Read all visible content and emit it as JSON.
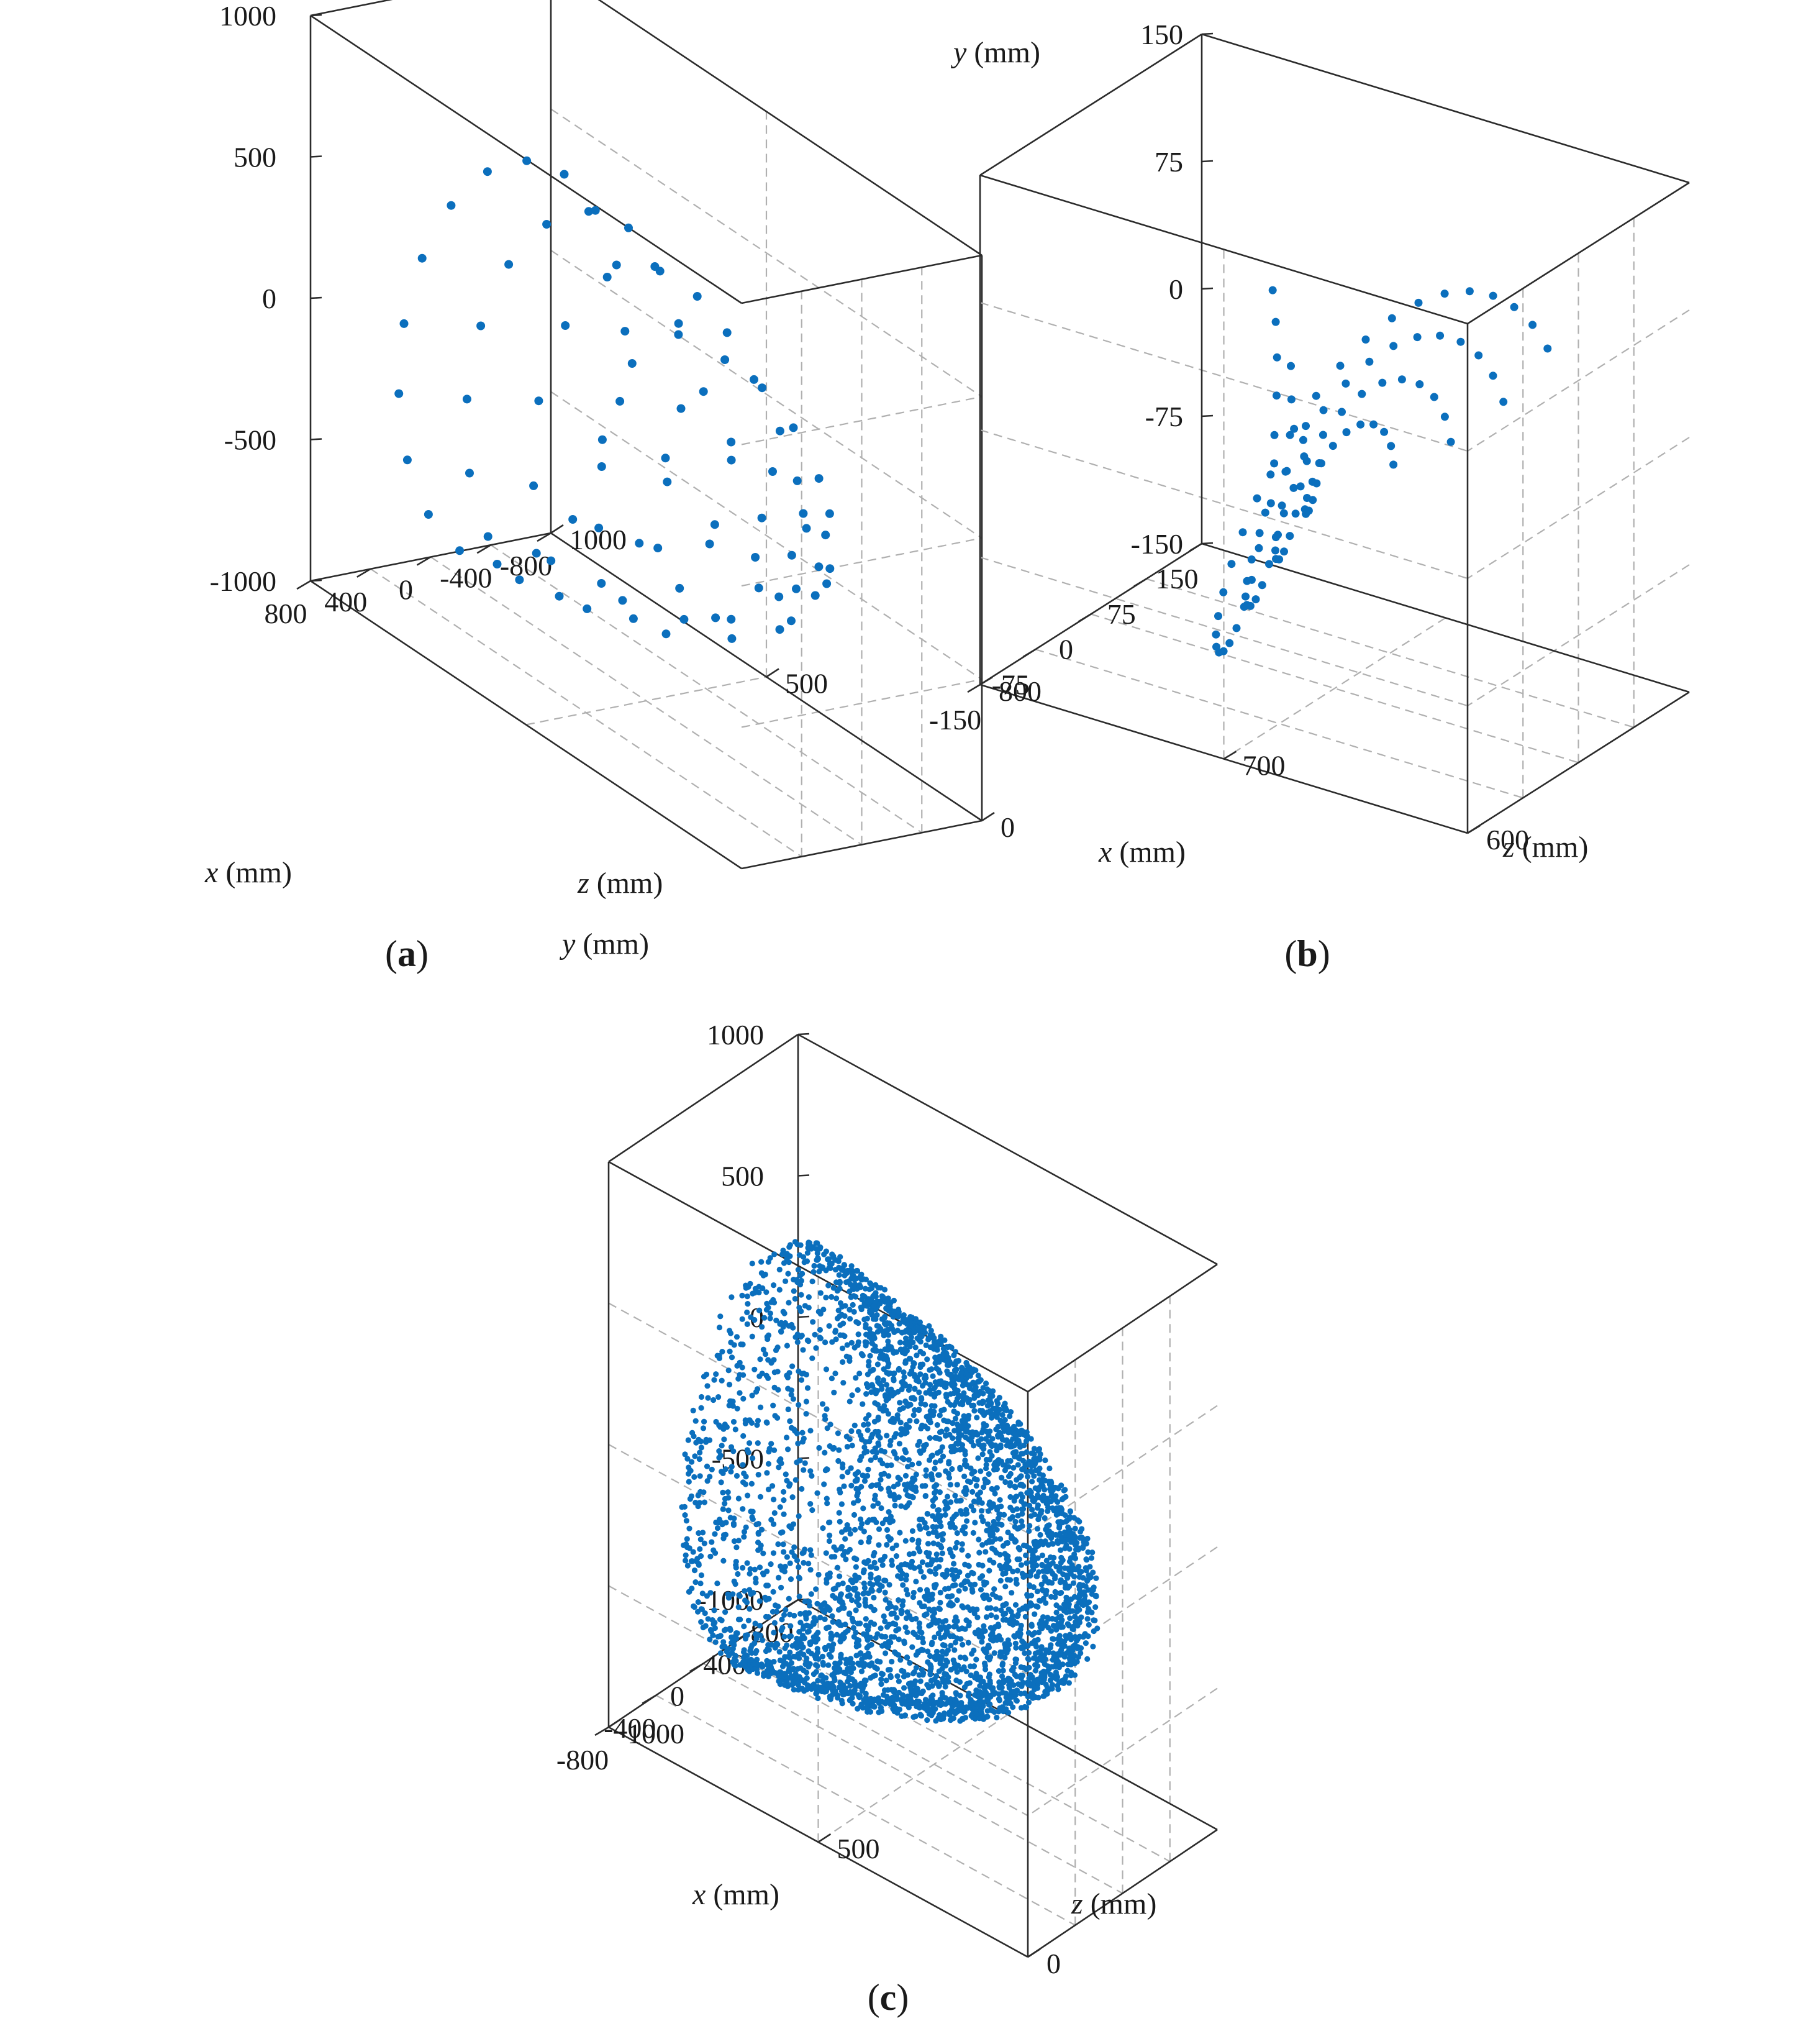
{
  "colors": {
    "points": "#0b6fbd",
    "axes": "#2b2b2b",
    "grid": "#b0b0b0"
  },
  "chart_data": [
    {
      "panel": "a",
      "type": "scatter",
      "projection": "3d",
      "panel_label": "(a)",
      "xlabel": "x (mm)",
      "ylabel": "y (mm)",
      "zlabel": "z (mm)",
      "xlim": [
        -800,
        800
      ],
      "ylim": [
        -1000,
        1000
      ],
      "zlim": [
        0,
        1000
      ],
      "x_ticks": [
        "800",
        "400",
        "0",
        "-400",
        "-800"
      ],
      "y_ticks": [
        "1000",
        "500",
        "0",
        "-500",
        "-1000"
      ],
      "z_ticks": [
        "0",
        "500",
        "1000"
      ],
      "grid": true,
      "sampling": "sparse spherical grid of sensing points, about 120 points",
      "point_count_approx": 120
    },
    {
      "panel": "b",
      "type": "scatter",
      "projection": "3d",
      "panel_label": "(b)",
      "xlabel": "x (mm)",
      "ylabel": "y (mm)",
      "zlabel": "z (mm)",
      "xlim": [
        -150,
        150
      ],
      "ylim": [
        -150,
        150
      ],
      "zlim": [
        600,
        800
      ],
      "x_ticks": [
        "150",
        "75",
        "0",
        "-75",
        "-150"
      ],
      "y_ticks": [
        "150",
        "75",
        "0",
        "-75",
        "-150"
      ],
      "z_ticks": [
        "600",
        "700",
        "800"
      ],
      "grid": true,
      "sampling": "concentric rings of points, about 110 points",
      "point_count_approx": 110
    },
    {
      "panel": "c",
      "type": "scatter",
      "projection": "3d",
      "panel_label": "(c)",
      "xlabel": "x (mm)",
      "ylabel": "y (mm)",
      "zlabel": "z (mm)",
      "xlim": [
        -800,
        800
      ],
      "ylim": [
        -1000,
        1000
      ],
      "zlim": [
        0,
        1000
      ],
      "x_ticks": [
        "800",
        "400",
        "0",
        "-400",
        "-800"
      ],
      "y_ticks": [
        "1000",
        "500",
        "0",
        "-500",
        "-1000"
      ],
      "z_ticks": [
        "0",
        "500",
        "1000"
      ],
      "grid": true,
      "sampling": "dense spherical cap of points, several thousand points",
      "point_count_approx": 4000
    }
  ]
}
